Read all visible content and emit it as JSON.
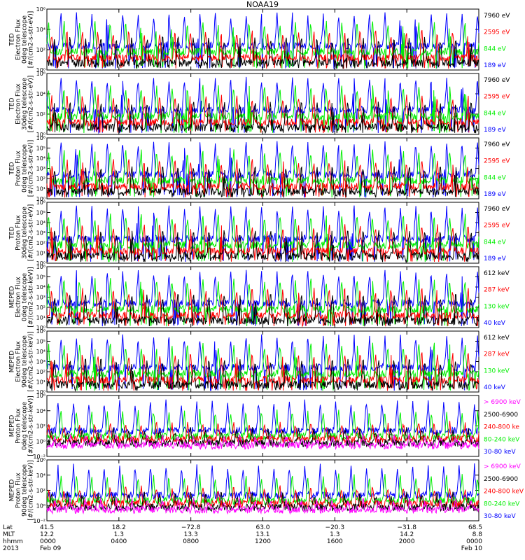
{
  "title": "NOAA19",
  "colors": {
    "black": "#000000",
    "red": "#ff0000",
    "green": "#00ee00",
    "blue": "#0000ff",
    "magenta": "#ff00ff"
  },
  "chart_data": [
    {
      "type": "line",
      "panel": "ted-electron-0deg",
      "ylabel": [
        "TED",
        "Electron Flux",
        "0deg telescope",
        "[#/(cm2-s-str-eV)]"
      ],
      "ylim": [
        1,
        1000000
      ],
      "yscale": "log",
      "yticks": [
        "10⁰",
        "10²",
        "10⁴",
        "10⁶"
      ],
      "series": [
        {
          "name": "7960 eV",
          "color": "#000000"
        },
        {
          "name": "2595 eV",
          "color": "#ff0000"
        },
        {
          "name": "844 eV",
          "color": "#00ee00"
        },
        {
          "name": "189 eV",
          "color": "#0000ff"
        }
      ]
    },
    {
      "type": "line",
      "panel": "ted-electron-30deg",
      "ylabel": [
        "TED",
        "Electron Flux",
        "30deg telescope",
        "[#/(cm2-s-str-eV)]"
      ],
      "ylim": [
        1,
        1000000
      ],
      "yscale": "log",
      "yticks": [
        "10⁰",
        "10²",
        "10⁴",
        "10⁶"
      ],
      "series": [
        {
          "name": "7960 eV",
          "color": "#000000"
        },
        {
          "name": "2595 eV",
          "color": "#ff0000"
        },
        {
          "name": "844 eV",
          "color": "#00ee00"
        },
        {
          "name": "189 eV",
          "color": "#0000ff"
        }
      ]
    },
    {
      "type": "line",
      "panel": "ted-proton-0deg",
      "ylabel": [
        "TED",
        "Proton Flux",
        "0deg telescope",
        "[#/(cm2-s-str-eV)]"
      ],
      "ylim": [
        1,
        1000000
      ],
      "yscale": "log",
      "yticks": [
        "10⁰",
        "10¹",
        "10²",
        "10³",
        "10⁴",
        "10⁵",
        "10⁶"
      ],
      "series": [
        {
          "name": "7960 eV",
          "color": "#000000"
        },
        {
          "name": "2595 eV",
          "color": "#ff0000"
        },
        {
          "name": "844 eV",
          "color": "#00ee00"
        },
        {
          "name": "189 eV",
          "color": "#0000ff"
        }
      ]
    },
    {
      "type": "line",
      "panel": "ted-proton-30deg",
      "ylabel": [
        "TED",
        "Proton Flux",
        "30deg telescope",
        "[#/(cm2-s-str-eV)]"
      ],
      "ylim": [
        1,
        1000000
      ],
      "yscale": "log",
      "yticks": [
        "10⁰",
        "10¹",
        "10²",
        "10³",
        "10⁴",
        "10⁵",
        "10⁶"
      ],
      "series": [
        {
          "name": "7960 eV",
          "color": "#000000"
        },
        {
          "name": "2595 eV",
          "color": "#ff0000"
        },
        {
          "name": "844 eV",
          "color": "#00ee00"
        },
        {
          "name": "189 eV",
          "color": "#0000ff"
        }
      ]
    },
    {
      "type": "line",
      "panel": "meped-electron-0deg",
      "ylabel": [
        "MEPED",
        "Electron Flux",
        "0deg telescope",
        "[#/(cm2-s-str-keV)]"
      ],
      "ylim": [
        1,
        1000000
      ],
      "yscale": "log",
      "yticks": [
        "10⁰",
        "10¹",
        "10²",
        "10³",
        "10⁴",
        "10⁵",
        "10⁶"
      ],
      "series": [
        {
          "name": "612 keV",
          "color": "#000000"
        },
        {
          "name": "287 keV",
          "color": "#ff0000"
        },
        {
          "name": "130 keV",
          "color": "#00ee00"
        },
        {
          "name": "40 keV",
          "color": "#0000ff"
        }
      ]
    },
    {
      "type": "line",
      "panel": "meped-electron-90deg",
      "ylabel": [
        "MEPED",
        "Electron Flux",
        "90deg telescope",
        "[#/(cm2-s-str-keV)]"
      ],
      "ylim": [
        1,
        1000000
      ],
      "yscale": "log",
      "yticks": [
        "10⁰",
        "10¹",
        "10²",
        "10³",
        "10⁴",
        "10⁵",
        "10⁶"
      ],
      "series": [
        {
          "name": "612 keV",
          "color": "#000000"
        },
        {
          "name": "287 keV",
          "color": "#ff0000"
        },
        {
          "name": "130 keV",
          "color": "#00ee00"
        },
        {
          "name": "40 keV",
          "color": "#0000ff"
        }
      ]
    },
    {
      "type": "line",
      "panel": "meped-proton-0deg",
      "ylabel": [
        "MEPED",
        "Proton Flux",
        "0deg telescope",
        "[#/(cm2-s-str-keV)]"
      ],
      "ylim": [
        0.01,
        1000000
      ],
      "yscale": "log",
      "yticks": [
        "10⁻²",
        "10⁰",
        "10²",
        "10⁴",
        "10⁶"
      ],
      "series": [
        {
          "name": "> 6900 keV",
          "color": "#ff00ff"
        },
        {
          "name": "2500-6900",
          "color": "#000000"
        },
        {
          "name": "240-800 ke",
          "color": "#ff0000"
        },
        {
          "name": "80-240 keV",
          "color": "#00ee00"
        },
        {
          "name": "30-80 keV",
          "color": "#0000ff"
        }
      ]
    },
    {
      "type": "line",
      "panel": "meped-proton-90deg",
      "ylabel": [
        "MEPED",
        "Proton Flux",
        "90deg telescope",
        "[#/(cm2-s-str-keV)]"
      ],
      "ylim": [
        0.01,
        1000000
      ],
      "yscale": "log",
      "yticks": [
        "10⁻²",
        "10⁰",
        "10²",
        "10⁴",
        "10⁶"
      ],
      "series": [
        {
          "name": "> 6900 keV",
          "color": "#ff00ff"
        },
        {
          "name": "2500-6900",
          "color": "#000000"
        },
        {
          "name": "240-800 keV",
          "color": "#ff0000"
        },
        {
          "name": "80-240 keV",
          "color": "#00ee00"
        },
        {
          "name": "30-80 keV",
          "color": "#0000ff"
        }
      ]
    }
  ],
  "x_axis": {
    "row_labels": [
      "Lat",
      "MLT",
      "hhmm",
      "2013"
    ],
    "columns": [
      {
        "lat": "41.5",
        "mlt": "12.2",
        "hhmm": "0000",
        "date": "Feb 09"
      },
      {
        "lat": "18.2",
        "mlt": "1.3",
        "hhmm": "0400",
        "date": ""
      },
      {
        "lat": "−72.8",
        "mlt": "13.3",
        "hhmm": "0800",
        "date": ""
      },
      {
        "lat": "63.0",
        "mlt": "13.1",
        "hhmm": "1200",
        "date": ""
      },
      {
        "lat": "−20.3",
        "mlt": "1.3",
        "hhmm": "1600",
        "date": ""
      },
      {
        "lat": "−31.8",
        "mlt": "14.2",
        "hhmm": "2000",
        "date": ""
      },
      {
        "lat": "68.5",
        "mlt": "8.8",
        "hhmm": "0000",
        "date": "Feb 10"
      }
    ]
  }
}
